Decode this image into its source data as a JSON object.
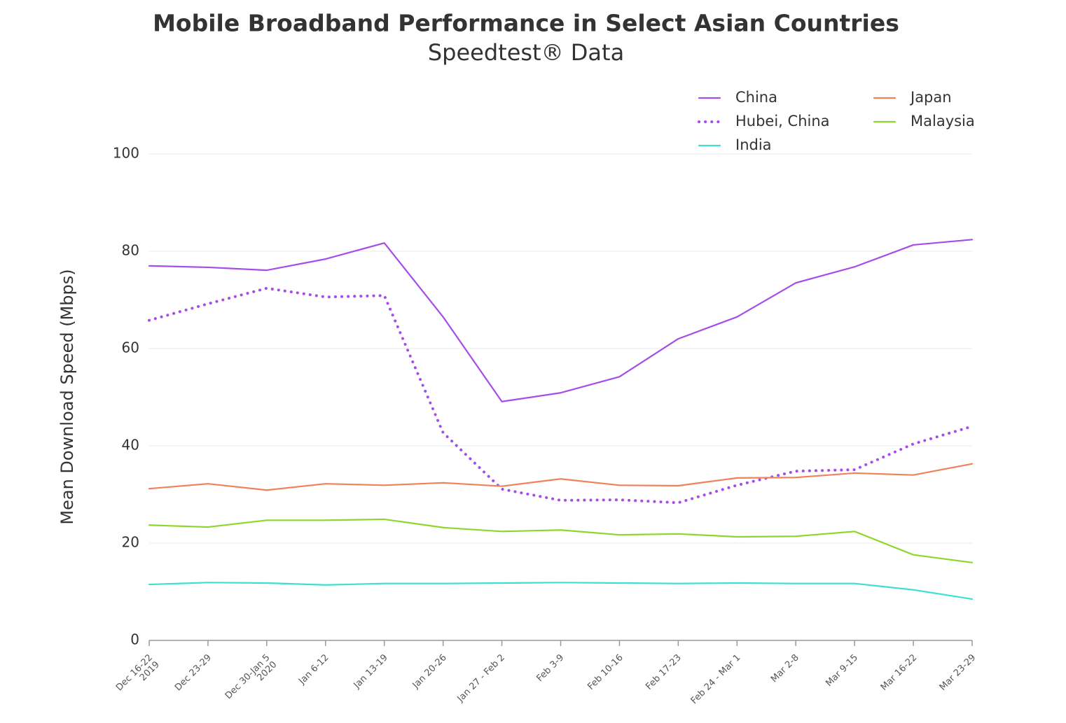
{
  "chart_data": {
    "type": "line",
    "title": "Mobile Broadband Performance in Select Asian Countries",
    "subtitle": "Speedtest® Data",
    "y_label": "Mean Download Speed (Mbps)",
    "categories": [
      "Dec 16-22\n2019",
      "Dec 23-29",
      "Dec 30-Jan 5\n2020",
      "Jan 6-12",
      "Jan 13-19",
      "Jan 20-26",
      "Jan 27 - Feb 2",
      "Feb 3-9",
      "Feb 10-16",
      "Feb 17-23",
      "Feb 24 - Mar 1",
      "Mar 2-8",
      "Mar 9-15",
      "Mar 16-22",
      "Mar 23-29"
    ],
    "series": [
      {
        "name": "China",
        "color": "#a64ce8",
        "style": "solid",
        "values": [
          77.0,
          76.7,
          76.1,
          78.4,
          81.7,
          66.5,
          49.1,
          50.9,
          54.2,
          62.0,
          66.5,
          73.5,
          76.8,
          81.3,
          82.4
        ]
      },
      {
        "name": "Hubei, China",
        "color": "#a64ce8",
        "style": "dotted",
        "values": [
          65.8,
          69.2,
          72.4,
          70.6,
          70.9,
          42.7,
          31.1,
          28.8,
          28.9,
          28.3,
          31.9,
          34.8,
          35.1,
          40.4,
          44.0
        ]
      },
      {
        "name": "India",
        "color": "#3de0d0",
        "style": "solid",
        "values": [
          11.5,
          11.9,
          11.8,
          11.4,
          11.7,
          11.7,
          11.8,
          11.9,
          11.8,
          11.7,
          11.8,
          11.7,
          11.7,
          10.4,
          8.5
        ]
      },
      {
        "name": "Japan",
        "color": "#f0825a",
        "style": "solid",
        "values": [
          31.2,
          32.2,
          30.9,
          32.2,
          31.9,
          32.4,
          31.7,
          33.2,
          31.9,
          31.8,
          33.4,
          33.5,
          34.4,
          34.0,
          36.3
        ]
      },
      {
        "name": "Malaysia",
        "color": "#8ed62c",
        "style": "solid",
        "values": [
          23.7,
          23.3,
          24.7,
          24.7,
          24.9,
          23.2,
          22.4,
          22.7,
          21.7,
          21.9,
          21.3,
          21.4,
          22.4,
          17.6,
          16.0
        ]
      }
    ],
    "ylim": [
      0,
      100
    ],
    "yticks": [
      0,
      20,
      40,
      60,
      80,
      100
    ],
    "grid": true
  }
}
